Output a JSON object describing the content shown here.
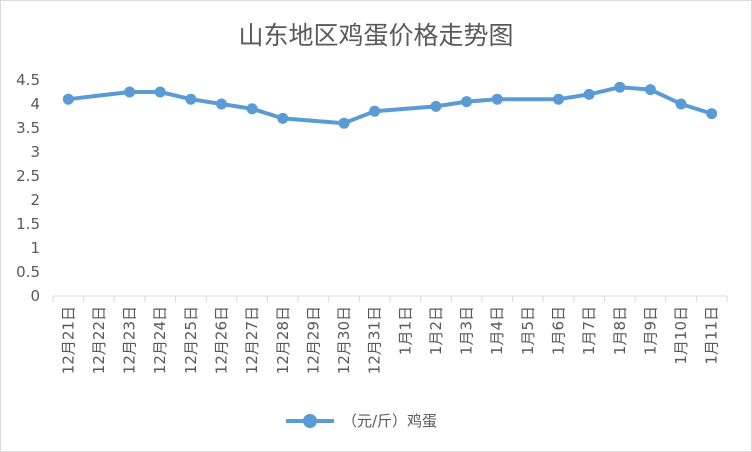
{
  "chart_data": {
    "type": "line",
    "title": "山东地区鸡蛋价格走势图",
    "categories": [
      "12月21日",
      "12月22日",
      "12月23日",
      "12月24日",
      "12月25日",
      "12月26日",
      "12月27日",
      "12月28日",
      "12月29日",
      "12月30日",
      "12月31日",
      "1月1日",
      "1月2日",
      "1月3日",
      "1月4日",
      "1月5日",
      "1月6日",
      "1月7日",
      "1月8日",
      "1月9日",
      "1月10日",
      "1月11日"
    ],
    "series": [
      {
        "name": "（元/斤）鸡蛋",
        "values": [
          4.1,
          null,
          4.25,
          4.25,
          4.1,
          4.0,
          3.9,
          3.7,
          null,
          3.6,
          3.85,
          null,
          3.95,
          4.05,
          4.1,
          null,
          4.1,
          4.2,
          4.35,
          4.3,
          4.0,
          3.8
        ]
      }
    ],
    "yticks": [
      "0",
      "0.5",
      "1",
      "1.5",
      "2",
      "2.5",
      "3",
      "3.5",
      "4",
      "4.5"
    ],
    "ylim": [
      0,
      4.5
    ],
    "grid": false,
    "legend_position": "bottom",
    "colors": {
      "series": "#5b9bd5",
      "axis": "#d9d9d9",
      "text": "#595959"
    }
  }
}
